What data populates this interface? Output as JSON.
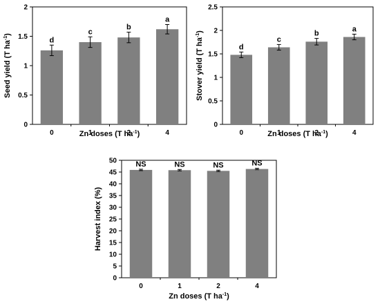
{
  "chart_data": [
    {
      "type": "bar",
      "categories": [
        "0",
        "1",
        "2",
        "4"
      ],
      "values": [
        1.26,
        1.4,
        1.48,
        1.62
      ],
      "errors": [
        0.09,
        0.09,
        0.09,
        0.08
      ],
      "annotations": [
        "d",
        "c",
        "b",
        "a"
      ],
      "xlabel": "Zn doses (T ha",
      "xlabel_sup": "-1",
      "xlabel_end": ")",
      "ylabel": "Seed yield (T ha",
      "ylabel_sup": "-1",
      "ylabel_end": ")",
      "ylim": [
        0,
        2
      ],
      "yticks": [
        "0",
        "0.5",
        "1",
        "1.5",
        "2"
      ],
      "bar_color": "#808080",
      "grid": false
    },
    {
      "type": "bar",
      "categories": [
        "0",
        "1",
        "2",
        "4"
      ],
      "values": [
        1.48,
        1.64,
        1.76,
        1.86
      ],
      "errors": [
        0.06,
        0.06,
        0.07,
        0.06
      ],
      "annotations": [
        "d",
        "c",
        "b",
        "a"
      ],
      "xlabel": "Zn doses (T ha",
      "xlabel_sup": "-1",
      "xlabel_end": ")",
      "ylabel": "Stover yield (T ha",
      "ylabel_sup": "-1",
      "ylabel_end": ")",
      "ylim": [
        0,
        2.5
      ],
      "yticks": [
        "0",
        "0.5",
        "1",
        "1.5",
        "2",
        "2.5"
      ],
      "bar_color": "#808080",
      "grid": false
    },
    {
      "type": "bar",
      "categories": [
        "0",
        "1",
        "2",
        "4"
      ],
      "values": [
        45.9,
        45.8,
        45.5,
        46.3
      ],
      "errors": [
        0.3,
        0.3,
        0.3,
        0.3
      ],
      "annotations": [
        "NS",
        "NS",
        "NS",
        "NS"
      ],
      "xlabel": "Zn doses (T ha",
      "xlabel_sup": "-1",
      "xlabel_end": ")",
      "ylabel": "Harvest index (%)",
      "ylabel_sup": "",
      "ylabel_end": "",
      "ylim": [
        0,
        50
      ],
      "yticks": [
        "0",
        "5",
        "10",
        "15",
        "20",
        "25",
        "30",
        "35",
        "40",
        "45",
        "50"
      ],
      "bar_color": "#808080",
      "grid": false
    }
  ]
}
